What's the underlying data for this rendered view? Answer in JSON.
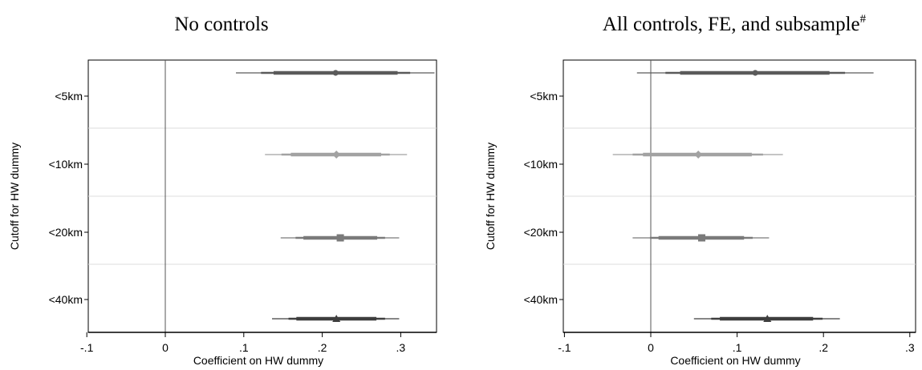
{
  "chart_data": [
    {
      "type": "coefficient-plot",
      "title": "No controls",
      "title_sup": "",
      "xlabel": "Coefficient on HW dummy",
      "ylabel": "Cutoff for HW dummy",
      "xlim": [
        -0.1,
        0.35
      ],
      "xticks": [
        -0.1,
        0,
        0.1,
        0.2,
        0.3
      ],
      "xtick_labels": [
        "-.1",
        "0",
        ".1",
        ".2",
        ".3"
      ],
      "reference_line": 0,
      "categories": [
        "<5km",
        "<10km",
        "<20km",
        "<40km"
      ],
      "estimates": [
        {
          "category": "<5km",
          "coef": 0.217,
          "ci95": [
            0.122,
            0.312
          ],
          "ci99": [
            0.09,
            0.343
          ],
          "ci_inner": [
            0.138,
            0.296
          ],
          "marker": "circle",
          "color": "#5a5a5a"
        },
        {
          "category": "<10km",
          "coef": 0.218,
          "ci95": [
            0.148,
            0.286
          ],
          "ci99": [
            0.127,
            0.308
          ],
          "ci_inner": [
            0.16,
            0.275
          ],
          "marker": "diamond",
          "color": "#a2a2a2"
        },
        {
          "category": "<20km",
          "coef": 0.223,
          "ci95": [
            0.166,
            0.28
          ],
          "ci99": [
            0.147,
            0.298
          ],
          "ci_inner": [
            0.176,
            0.27
          ],
          "marker": "square",
          "color": "#7a7a7a"
        },
        {
          "category": "<40km",
          "coef": 0.218,
          "ci95": [
            0.157,
            0.28
          ],
          "ci99": [
            0.136,
            0.298
          ],
          "ci_inner": [
            0.167,
            0.269
          ],
          "marker": "triangle",
          "color": "#3e3e3e"
        }
      ]
    },
    {
      "type": "coefficient-plot",
      "title": "All controls, FE, and subsample",
      "title_sup": "#",
      "xlabel": "Coefficient on HW dummy",
      "ylabel": "Cutoff for HW dummy",
      "xlim": [
        -0.1,
        0.31
      ],
      "xticks": [
        -0.1,
        0,
        0.1,
        0.2,
        0.3
      ],
      "xtick_labels": [
        "-.1",
        "0",
        ".1",
        ".2",
        ".3"
      ],
      "reference_line": 0,
      "categories": [
        "<5km",
        "<10km",
        "<20km",
        "<40km"
      ],
      "estimates": [
        {
          "category": "<5km",
          "coef": 0.121,
          "ci95": [
            0.017,
            0.225
          ],
          "ci99": [
            -0.016,
            0.258
          ],
          "ci_inner": [
            0.034,
            0.207
          ],
          "marker": "circle",
          "color": "#5a5a5a"
        },
        {
          "category": "<10km",
          "coef": 0.055,
          "ci95": [
            -0.021,
            0.13
          ],
          "ci99": [
            -0.044,
            0.153
          ],
          "ci_inner": [
            -0.009,
            0.117
          ],
          "marker": "diamond",
          "color": "#a2a2a2"
        },
        {
          "category": "<20km",
          "coef": 0.059,
          "ci95": [
            -0.001,
            0.118
          ],
          "ci99": [
            -0.021,
            0.137
          ],
          "ci_inner": [
            0.009,
            0.108
          ],
          "marker": "square",
          "color": "#7a7a7a"
        },
        {
          "category": "<40km",
          "coef": 0.135,
          "ci95": [
            0.07,
            0.199
          ],
          "ci99": [
            0.05,
            0.219
          ],
          "ci_inner": [
            0.08,
            0.188
          ],
          "marker": "triangle",
          "color": "#3e3e3e"
        }
      ]
    }
  ]
}
